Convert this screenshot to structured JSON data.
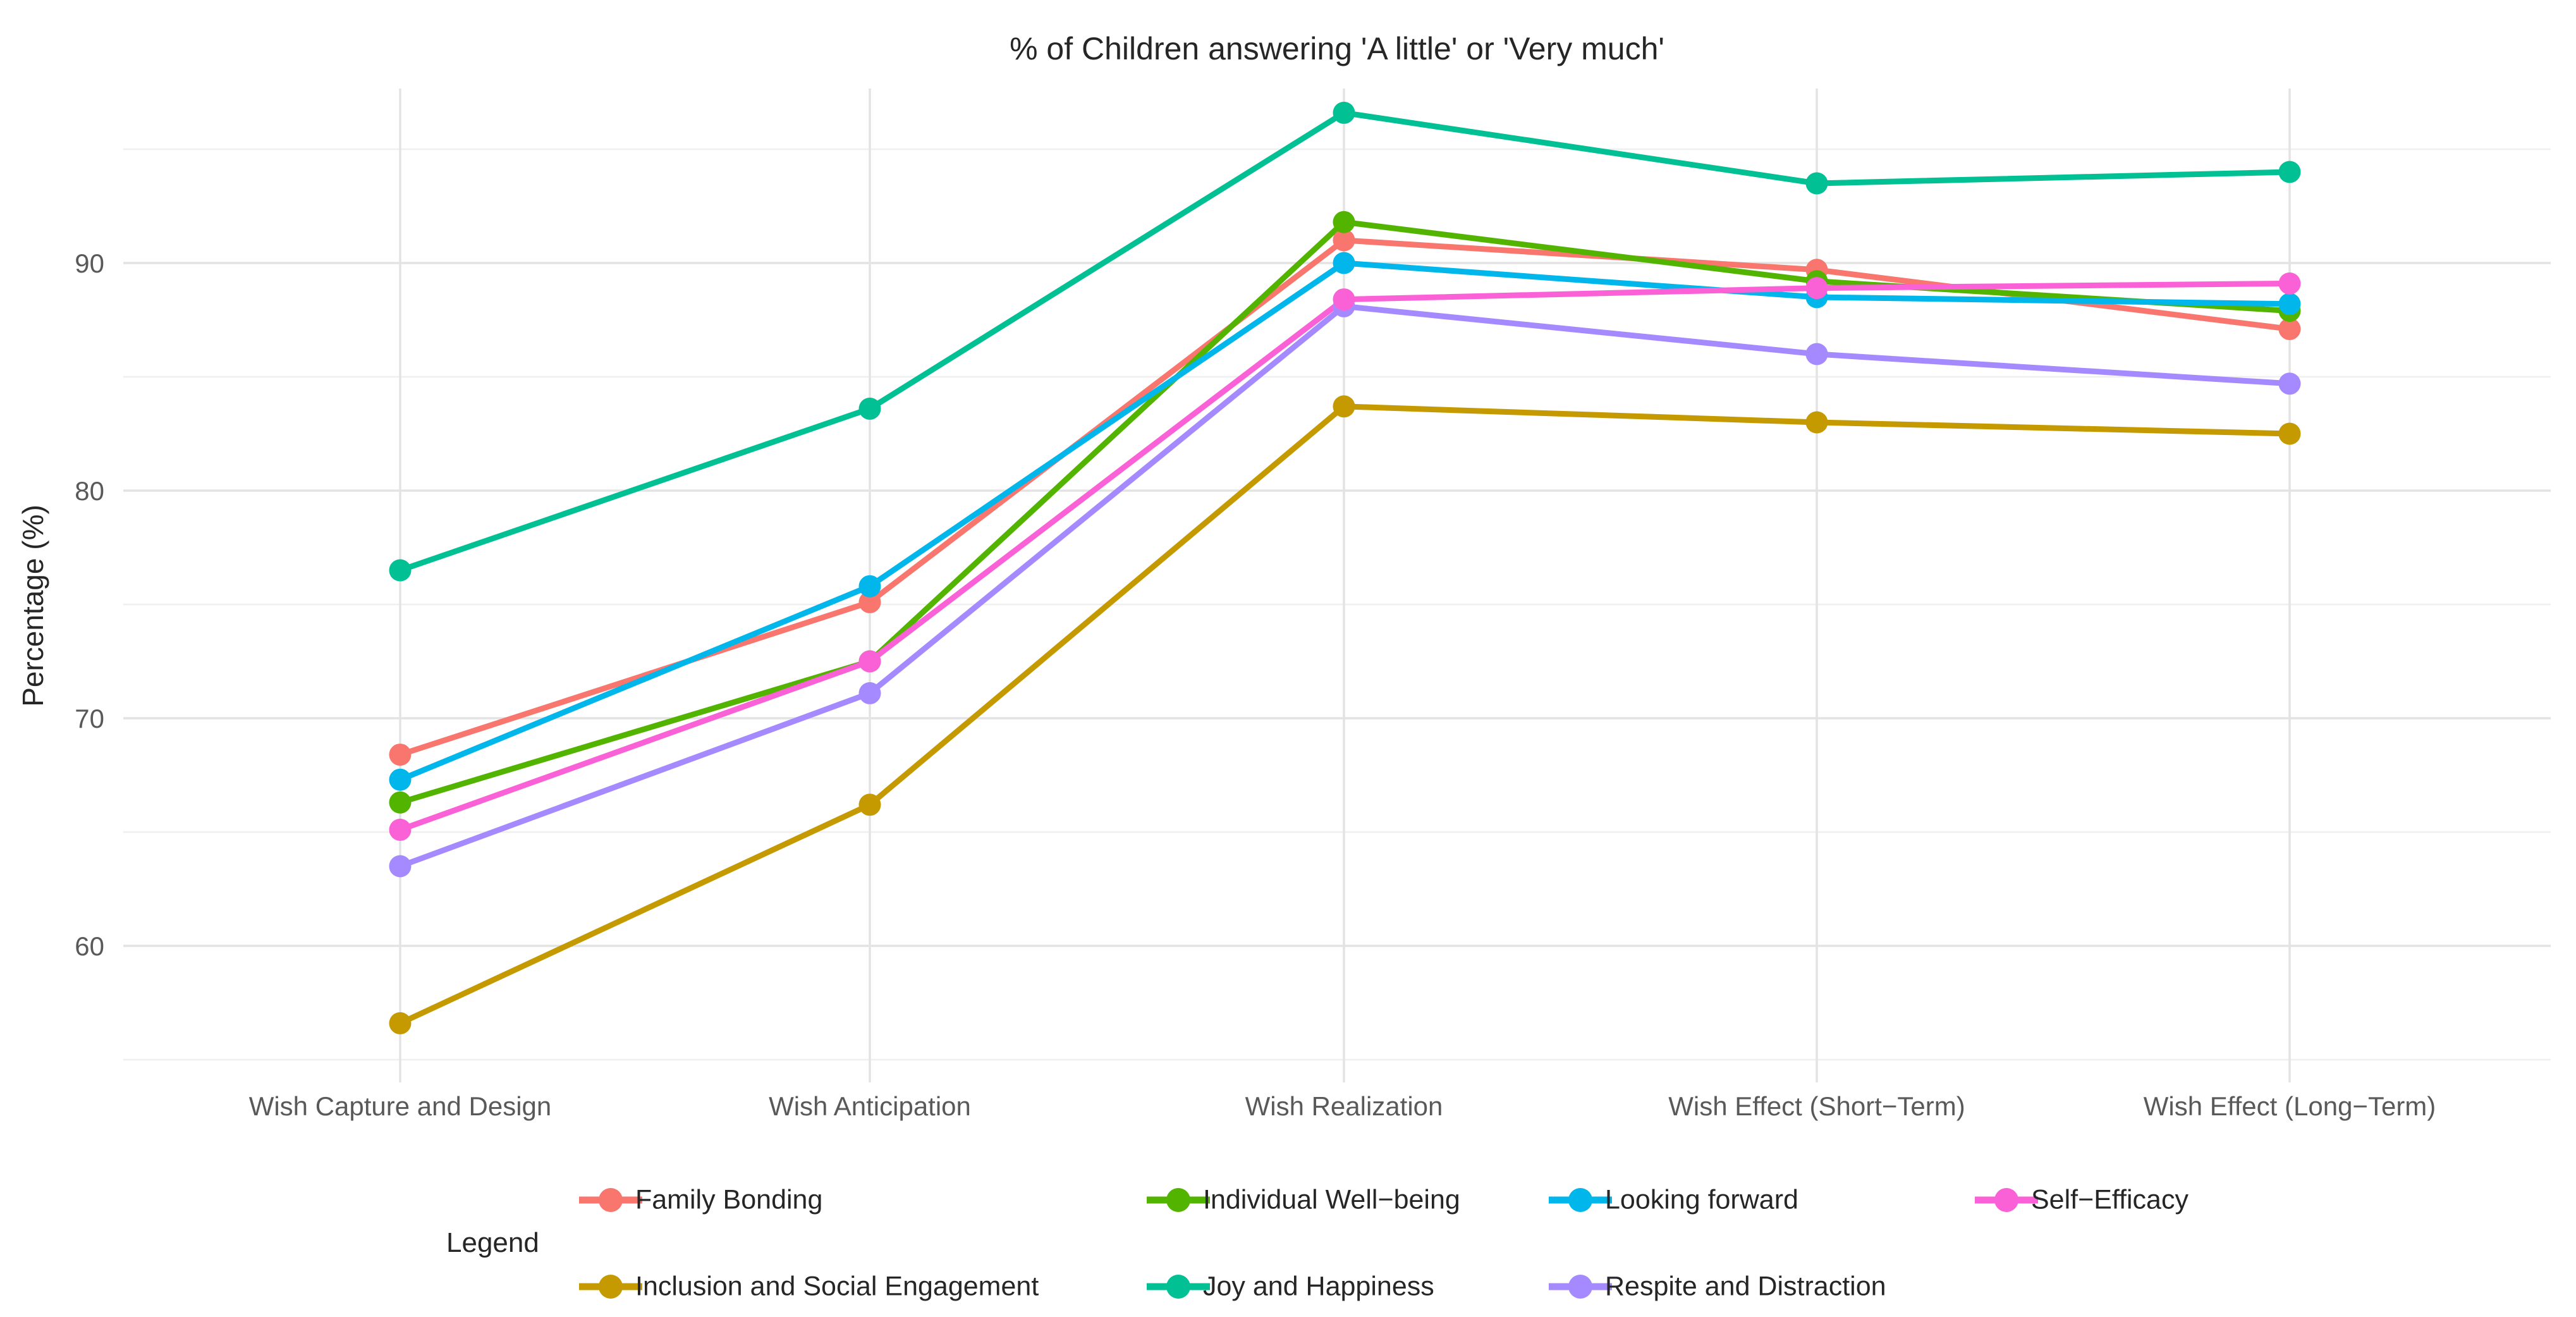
{
  "chart_data": {
    "type": "line",
    "title": "% of Children answering 'A little' or 'Very much'",
    "ylabel": "Percentage (%)",
    "xlabel": "",
    "categories": [
      "Wish Capture and Design",
      "Wish Anticipation",
      "Wish Realization",
      "Wish Effect (Short−Term)",
      "Wish Effect (Long−Term)"
    ],
    "y_ticks": [
      60,
      70,
      80,
      90
    ],
    "y_gridlines": [
      55,
      60,
      65,
      70,
      75,
      80,
      85,
      90,
      95
    ],
    "ylim": [
      53.5,
      97.8
    ],
    "grid": "on",
    "legend_position": "bottom",
    "series": [
      {
        "name": "Family Bonding",
        "color": "#F8766D",
        "values": [
          68.4,
          75.1,
          91.0,
          89.7,
          87.1
        ]
      },
      {
        "name": "Inclusion and Social Engagement",
        "color": "#C49A00",
        "values": [
          56.6,
          66.2,
          83.7,
          83.0,
          82.5
        ]
      },
      {
        "name": "Individual Well−being",
        "color": "#53B400",
        "values": [
          66.3,
          72.5,
          91.8,
          89.2,
          87.9
        ]
      },
      {
        "name": "Joy and Happiness",
        "color": "#00C094",
        "values": [
          76.5,
          83.6,
          96.6,
          93.5,
          94.0
        ]
      },
      {
        "name": "Looking forward",
        "color": "#00B6EB",
        "values": [
          67.3,
          75.8,
          90.0,
          88.5,
          88.2
        ]
      },
      {
        "name": "Respite and Distraction",
        "color": "#A58AFF",
        "values": [
          63.5,
          71.1,
          88.1,
          86.0,
          84.7
        ]
      },
      {
        "name": "Self−Efficacy",
        "color": "#FB61D7",
        "values": [
          65.1,
          72.5,
          88.4,
          88.9,
          89.1
        ]
      }
    ],
    "legend": {
      "title": "Legend",
      "rows": [
        [
          "Family Bonding",
          "Individual Well−being",
          "Looking forward",
          "Self−Efficacy"
        ],
        [
          "Inclusion and Social Engagement",
          "Joy and Happiness",
          "Respite and Distraction"
        ]
      ]
    },
    "style": {
      "background": "#FFFFFF",
      "grid_major": "#E3E3E3",
      "grid_minor": "#EFEFEF",
      "axis_text": "#595959",
      "text": "#262626"
    }
  }
}
